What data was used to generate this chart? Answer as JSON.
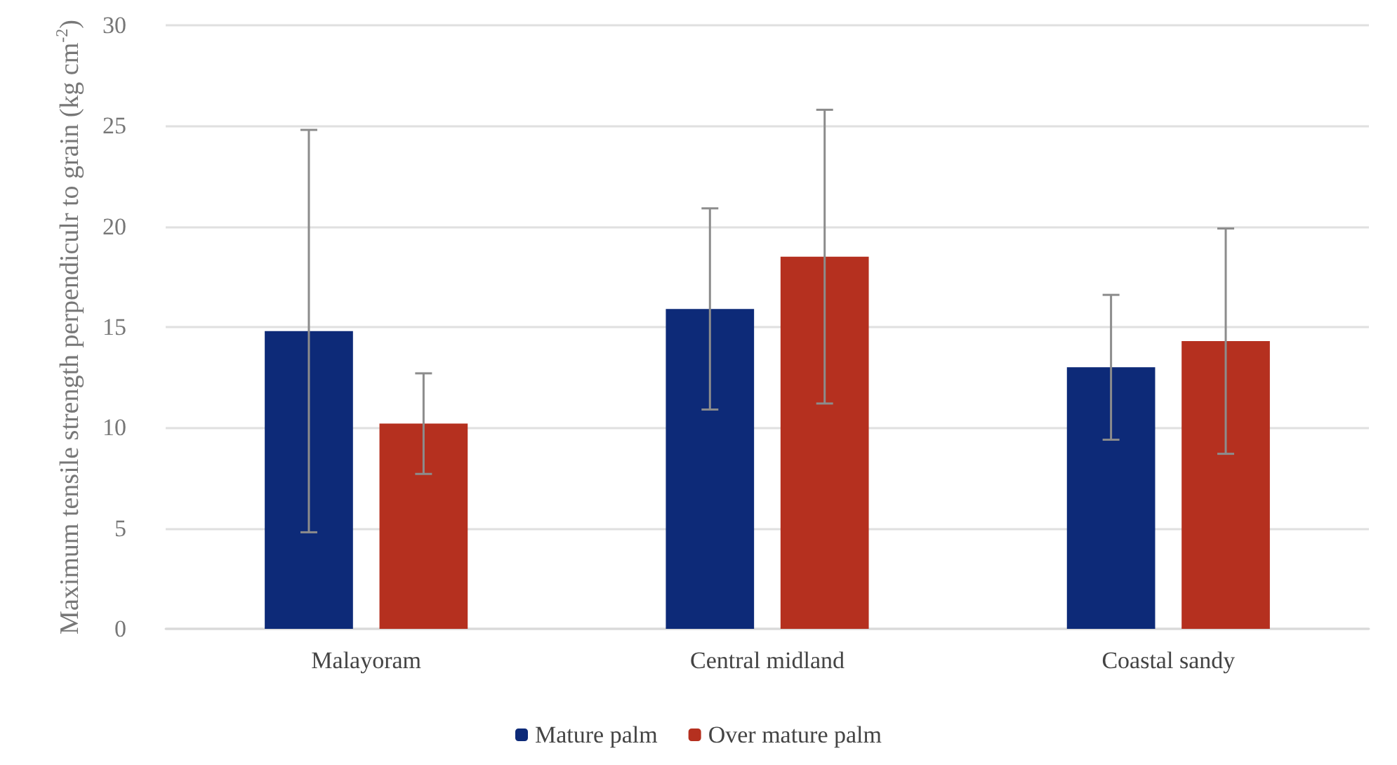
{
  "chart_data": {
    "type": "bar",
    "ylabel": "Maximum tensile strength perpendiculr to grain (kg cm$^{-2}$)",
    "categories": [
      "Malayoram",
      "Central midland",
      "Coastal sandy"
    ],
    "series": [
      {
        "name": "Mature palm",
        "color": "#0d2a78",
        "values": [
          14.8,
          15.9,
          13.0
        ],
        "errors": [
          10.0,
          5.0,
          3.6
        ]
      },
      {
        "name": "Over mature palm",
        "color": "#b5301f",
        "values": [
          10.2,
          18.5,
          14.3
        ],
        "errors": [
          2.5,
          7.3,
          5.6
        ]
      }
    ],
    "ylim": [
      0,
      30
    ],
    "yticks": [
      0,
      5,
      10,
      15,
      20,
      25,
      30
    ],
    "grid": "y",
    "legend": "bottom"
  }
}
